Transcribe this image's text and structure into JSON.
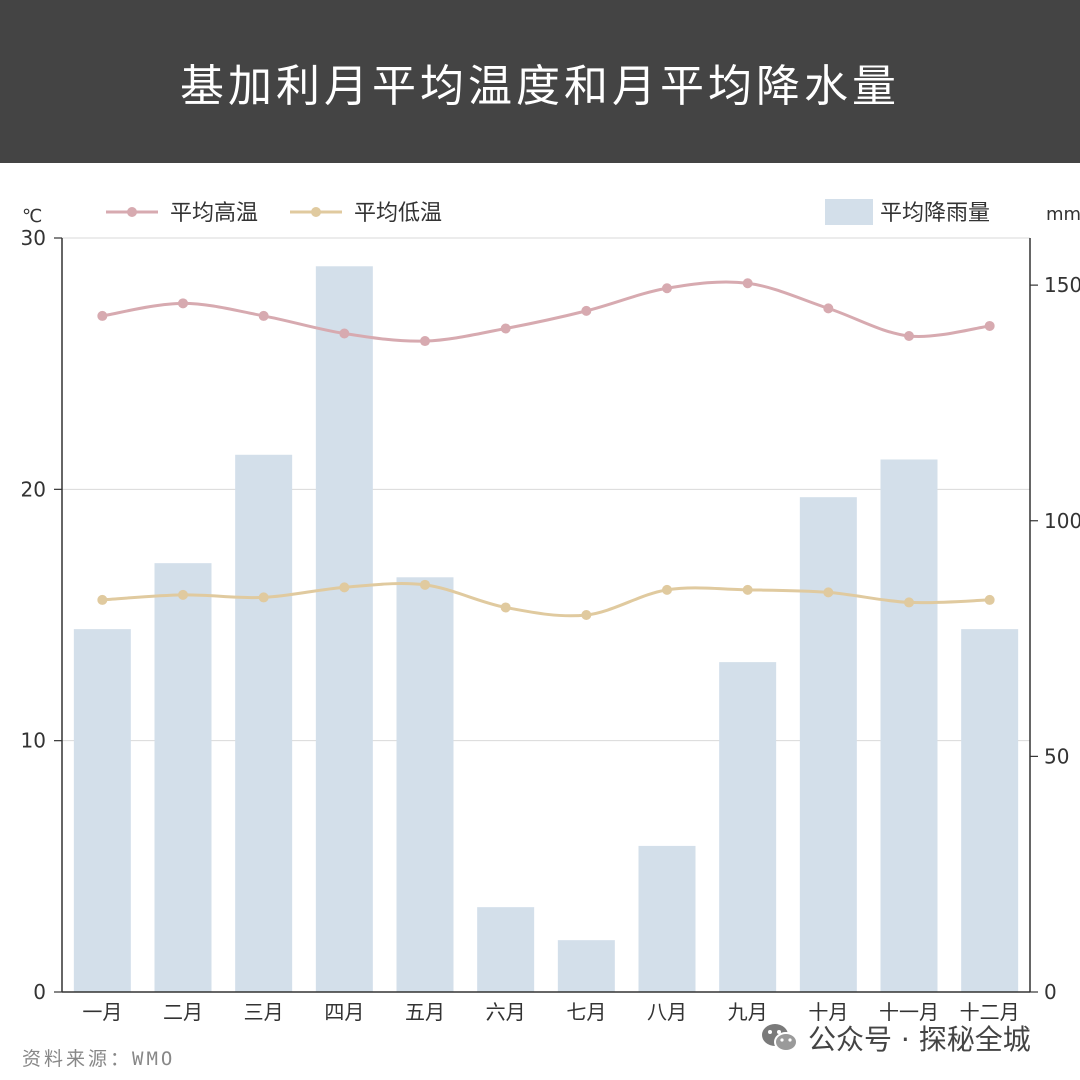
{
  "header": {
    "title": "基加利月平均温度和月平均降水量"
  },
  "footer": {
    "source": "资料来源：WMO"
  },
  "watermark": {
    "text": "公众号 · 探秘全城"
  },
  "colors": {
    "header_bg": "#444444",
    "high_line": "#d7aab0",
    "low_line": "#e0ca9f",
    "bar": "#d3dfea",
    "grid": "#d9d9d9"
  },
  "chart_data": {
    "type": "bar",
    "categories": [
      "一月",
      "二月",
      "三月",
      "四月",
      "五月",
      "六月",
      "七月",
      "八月",
      "九月",
      "十月",
      "十一月",
      "十二月"
    ],
    "left_axis": {
      "unit": "℃",
      "ticks": [
        0,
        10,
        20,
        30
      ],
      "range": [
        0,
        30
      ]
    },
    "right_axis": {
      "unit": "mm",
      "ticks": [
        0,
        50,
        100,
        150
      ],
      "range": [
        0,
        160
      ]
    },
    "legend": [
      "平均高温",
      "平均低温",
      "平均降雨量"
    ],
    "series": [
      {
        "name": "平均降雨量",
        "type": "bar",
        "axis": "right",
        "values": [
          77,
          91,
          114,
          154,
          88,
          18,
          11,
          31,
          70,
          105,
          113,
          77
        ]
      },
      {
        "name": "平均高温",
        "type": "line",
        "axis": "left",
        "values": [
          26.9,
          27.4,
          26.9,
          26.2,
          25.9,
          26.4,
          27.1,
          28.0,
          28.2,
          27.2,
          26.1,
          26.5
        ]
      },
      {
        "name": "平均低温",
        "type": "line",
        "axis": "left",
        "values": [
          15.6,
          15.8,
          15.7,
          16.1,
          16.2,
          15.3,
          15.0,
          16.0,
          16.0,
          15.9,
          15.5,
          15.6
        ]
      }
    ]
  }
}
